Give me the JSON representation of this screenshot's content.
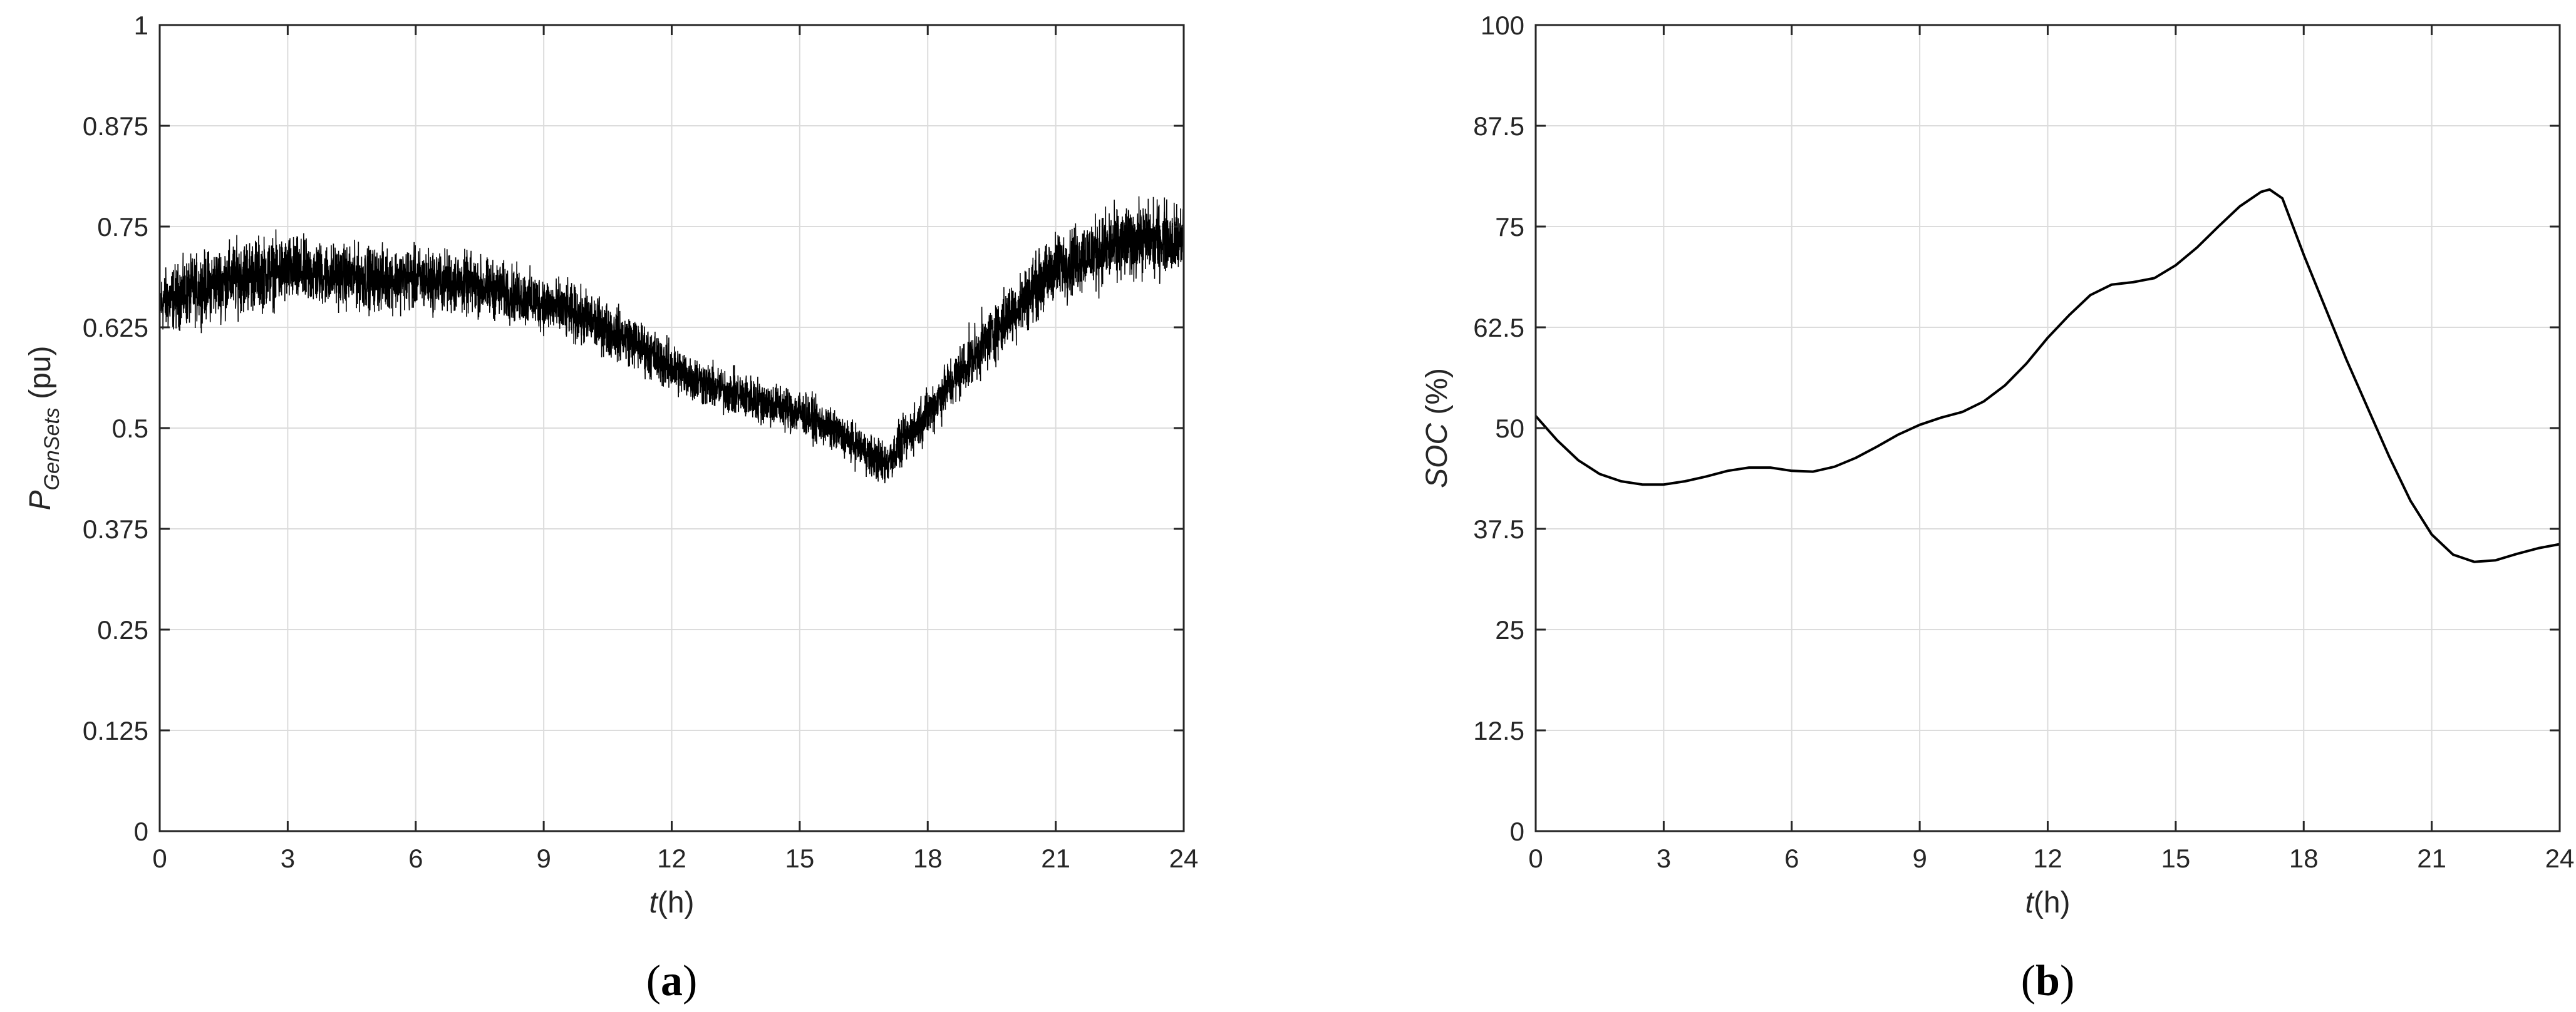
{
  "chart_data": [
    {
      "type": "line",
      "panel_label": "a",
      "xlabel": {
        "var": "t",
        "rest": "(h)"
      },
      "ylabel": {
        "var": "P",
        "sub": "GenSets",
        "rest": " (pu)"
      },
      "xlim": [
        0,
        24
      ],
      "ylim": [
        0,
        1
      ],
      "x_ticks": [
        0,
        3,
        6,
        9,
        12,
        15,
        18,
        21,
        24
      ],
      "x_tick_labels": [
        "0",
        "3",
        "6",
        "9",
        "12",
        "15",
        "18",
        "21",
        "24"
      ],
      "y_ticks": [
        0,
        0.125,
        0.25,
        0.375,
        0.5,
        0.625,
        0.75,
        0.875,
        1
      ],
      "y_tick_labels": [
        "0",
        "0.125",
        "0.25",
        "0.375",
        "0.5",
        "0.625",
        "0.75",
        "0.875",
        "1"
      ],
      "grid": true,
      "line_color": "#000000",
      "series": [
        {
          "x": [
            0,
            1,
            2,
            3,
            4,
            5,
            6,
            7,
            8,
            9,
            10,
            11,
            12,
            13,
            14,
            15,
            16,
            17,
            18,
            19,
            20,
            21,
            22,
            23,
            24
          ],
          "values": [
            0.655,
            0.675,
            0.69,
            0.695,
            0.69,
            0.685,
            0.685,
            0.68,
            0.67,
            0.655,
            0.635,
            0.61,
            0.575,
            0.55,
            0.535,
            0.52,
            0.49,
            0.455,
            0.52,
            0.585,
            0.645,
            0.7,
            0.72,
            0.735,
            0.735
          ],
          "band": [
            0.055,
            0.06,
            0.065,
            0.06,
            0.055,
            0.055,
            0.055,
            0.055,
            0.05,
            0.05,
            0.05,
            0.045,
            0.045,
            0.04,
            0.04,
            0.04,
            0.035,
            0.04,
            0.045,
            0.05,
            0.055,
            0.06,
            0.065,
            0.065,
            0.06
          ]
        }
      ]
    },
    {
      "type": "line",
      "panel_label": "b",
      "xlabel": {
        "var": "t",
        "rest": "(h)"
      },
      "ylabel": {
        "var": "SOC",
        "rest": " (%)"
      },
      "xlim": [
        0,
        24
      ],
      "ylim": [
        0,
        100
      ],
      "x_ticks": [
        0,
        3,
        6,
        9,
        12,
        15,
        18,
        21,
        24
      ],
      "x_tick_labels": [
        "0",
        "3",
        "6",
        "9",
        "12",
        "15",
        "18",
        "21",
        "24"
      ],
      "y_ticks": [
        0,
        12.5,
        25,
        37.5,
        50,
        62.5,
        75,
        87.5,
        100
      ],
      "y_tick_labels": [
        "0",
        "12.5",
        "25",
        "37.5",
        "50",
        "62.5",
        "75",
        "87.5",
        "100"
      ],
      "grid": true,
      "line_color": "#000000",
      "series": [
        {
          "x": [
            0,
            0.5,
            1,
            1.5,
            2,
            2.5,
            3,
            3.5,
            4,
            4.5,
            5,
            5.5,
            6,
            6.5,
            7,
            7.5,
            8,
            8.5,
            9,
            9.5,
            10,
            10.5,
            11,
            11.5,
            12,
            12.5,
            13,
            13.5,
            14,
            14.5,
            15,
            15.5,
            16,
            16.5,
            17,
            17.2,
            17.5,
            18,
            18.5,
            19,
            19.5,
            20,
            20.5,
            21,
            21.5,
            22,
            22.5,
            23,
            23.5,
            24
          ],
          "values": [
            51.5,
            48.5,
            46,
            44.3,
            43.4,
            43,
            43,
            43.4,
            44,
            44.7,
            45.1,
            45.1,
            44.7,
            44.6,
            45.2,
            46.3,
            47.7,
            49.2,
            50.4,
            51.3,
            52,
            53.3,
            55.3,
            58,
            61.2,
            64,
            66.5,
            67.8,
            68.1,
            68.6,
            70.2,
            72.4,
            75,
            77.5,
            79.3,
            79.6,
            78.5,
            71.5,
            65,
            58.5,
            52.5,
            46.5,
            41,
            36.8,
            34.3,
            33.4,
            33.6,
            34.4,
            35.1,
            35.6
          ]
        }
      ]
    }
  ]
}
